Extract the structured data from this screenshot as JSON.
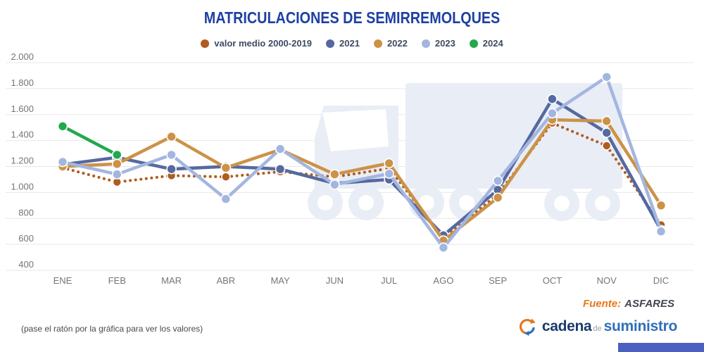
{
  "title": "MATRICULACIONES DE SEMIRREMOLQUES",
  "legend": {
    "items": [
      {
        "key": "valor-medio",
        "label": "valor medio 2000-2019",
        "color": "#b05c1e"
      },
      {
        "key": "2021",
        "label": "2021",
        "color": "#5569a0"
      },
      {
        "key": "2022",
        "label": "2022",
        "color": "#cc9247"
      },
      {
        "key": "2023",
        "label": "2023",
        "color": "#a3b6e0"
      },
      {
        "key": "2024",
        "label": "2024",
        "color": "#23a94d"
      }
    ]
  },
  "chart_data": {
    "type": "line",
    "title": "MATRICULACIONES DE SEMIRREMOLQUES",
    "xlabel": "",
    "ylabel": "",
    "grid": true,
    "legend_position": "top",
    "categories": [
      "ENE",
      "FEB",
      "MAR",
      "ABR",
      "MAY",
      "JUN",
      "JUL",
      "AGO",
      "SEP",
      "OCT",
      "NOV",
      "DIC"
    ],
    "ylim": [
      400,
      2000
    ],
    "yticks": [
      {
        "value": 2000,
        "label": "2.000"
      },
      {
        "value": 1800,
        "label": "1.800"
      },
      {
        "value": 1600,
        "label": "1.600"
      },
      {
        "value": 1400,
        "label": "1.400"
      },
      {
        "value": 1200,
        "label": "1.200"
      },
      {
        "value": 1000,
        "label": "1.000"
      },
      {
        "value": 800,
        "label": "800"
      },
      {
        "value": 600,
        "label": "600"
      },
      {
        "value": 400,
        "label": "400"
      }
    ],
    "series": [
      {
        "key": "valor-medio",
        "name": "valor medio 2000-2019",
        "color": "#b05c1e",
        "style": "dotted",
        "values": [
          1190,
          1080,
          1130,
          1120,
          1160,
          1120,
          1185,
          650,
          985,
          1535,
          1360,
          750
        ]
      },
      {
        "key": "2021",
        "name": "2021",
        "color": "#5569a0",
        "style": "solid",
        "values": [
          1215,
          1270,
          1180,
          1200,
          1180,
          1070,
          1100,
          670,
          1020,
          1720,
          1460,
          710
        ]
      },
      {
        "key": "2022",
        "name": "2022",
        "color": "#cc9247",
        "style": "solid",
        "values": [
          1200,
          1220,
          1430,
          1190,
          1330,
          1140,
          1225,
          630,
          960,
          1560,
          1550,
          900
        ]
      },
      {
        "key": "2023",
        "name": "2023",
        "color": "#a3b6e0",
        "style": "solid",
        "values": [
          1235,
          1140,
          1290,
          950,
          1335,
          1060,
          1145,
          575,
          1090,
          1610,
          1890,
          700
        ]
      },
      {
        "key": "2024",
        "name": "2024",
        "color": "#23a94d",
        "style": "solid",
        "values": [
          1510,
          1290,
          null,
          null,
          null,
          null,
          null,
          null,
          null,
          null,
          null,
          null
        ]
      }
    ]
  },
  "footer": {
    "hint": "(pase el ratón por la gráfica para ver los valores)",
    "source_label": "Fuente:",
    "source_value": "ASFARES"
  },
  "logo": {
    "word1": "cadena",
    "word2": "de",
    "word3": "suministro"
  },
  "colors": {
    "title": "#1e3fa4",
    "axis_labels": "#757575",
    "grid": "#e7e7e7",
    "watermark": "#e9edf5",
    "source_label": "#e87818",
    "source_value": "#40454f",
    "logo_navy": "#1b3a6d",
    "logo_blue": "#2f6fb8",
    "bottom_bar": "#4c60c2"
  }
}
